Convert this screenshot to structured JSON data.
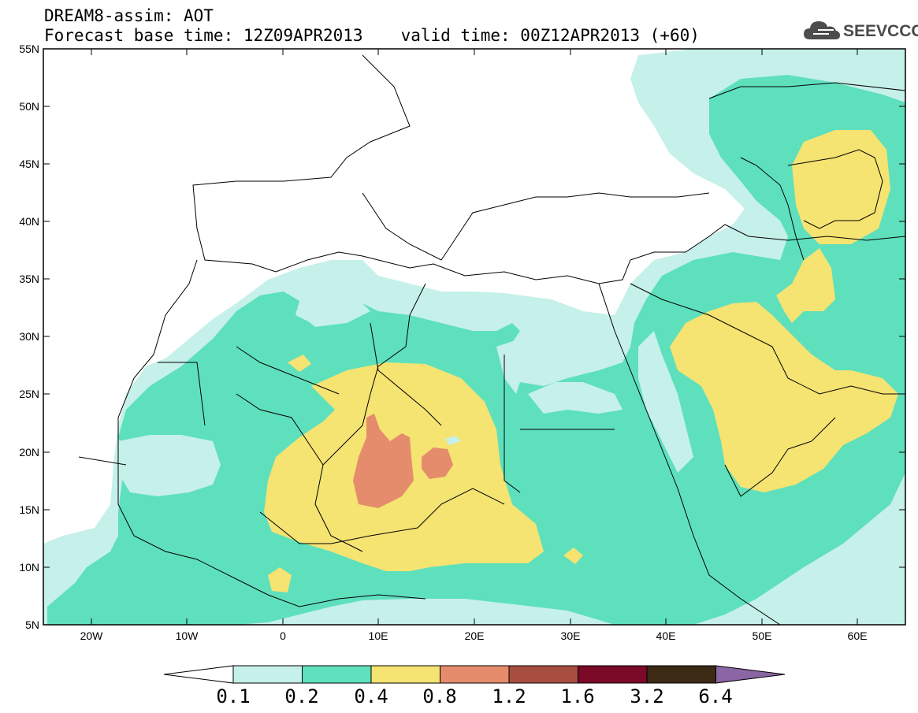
{
  "title": {
    "line1": "DREAM8-assim: AOT",
    "base_time": "Forecast base time: 12Z09APR2013",
    "valid_time": "valid time: 00Z12APR2013 (+60)"
  },
  "logo": {
    "text": "SEEVCCC",
    "icon": "cloud-icon"
  },
  "map": {
    "lat_labels": [
      "55N",
      "50N",
      "45N",
      "40N",
      "35N",
      "30N",
      "25N",
      "20N",
      "15N",
      "10N",
      "5N"
    ],
    "lon_labels": [
      "20W",
      "10W",
      "0",
      "10E",
      "20E",
      "30E",
      "40E",
      "50E",
      "60E"
    ],
    "lat_range": [
      5,
      55
    ],
    "lon_range": [
      -25,
      65
    ]
  },
  "colorbar": {
    "labels": [
      "0.1",
      "0.2",
      "0.4",
      "0.8",
      "1.2",
      "1.6",
      "3.2",
      "6.4"
    ],
    "colors": [
      "#ffffff",
      "#c6f0ea",
      "#5ee0bd",
      "#f5e372",
      "#e58c6c",
      "#a84e40",
      "#7a0a28",
      "#3c2a14",
      "#8a66a4"
    ]
  }
}
